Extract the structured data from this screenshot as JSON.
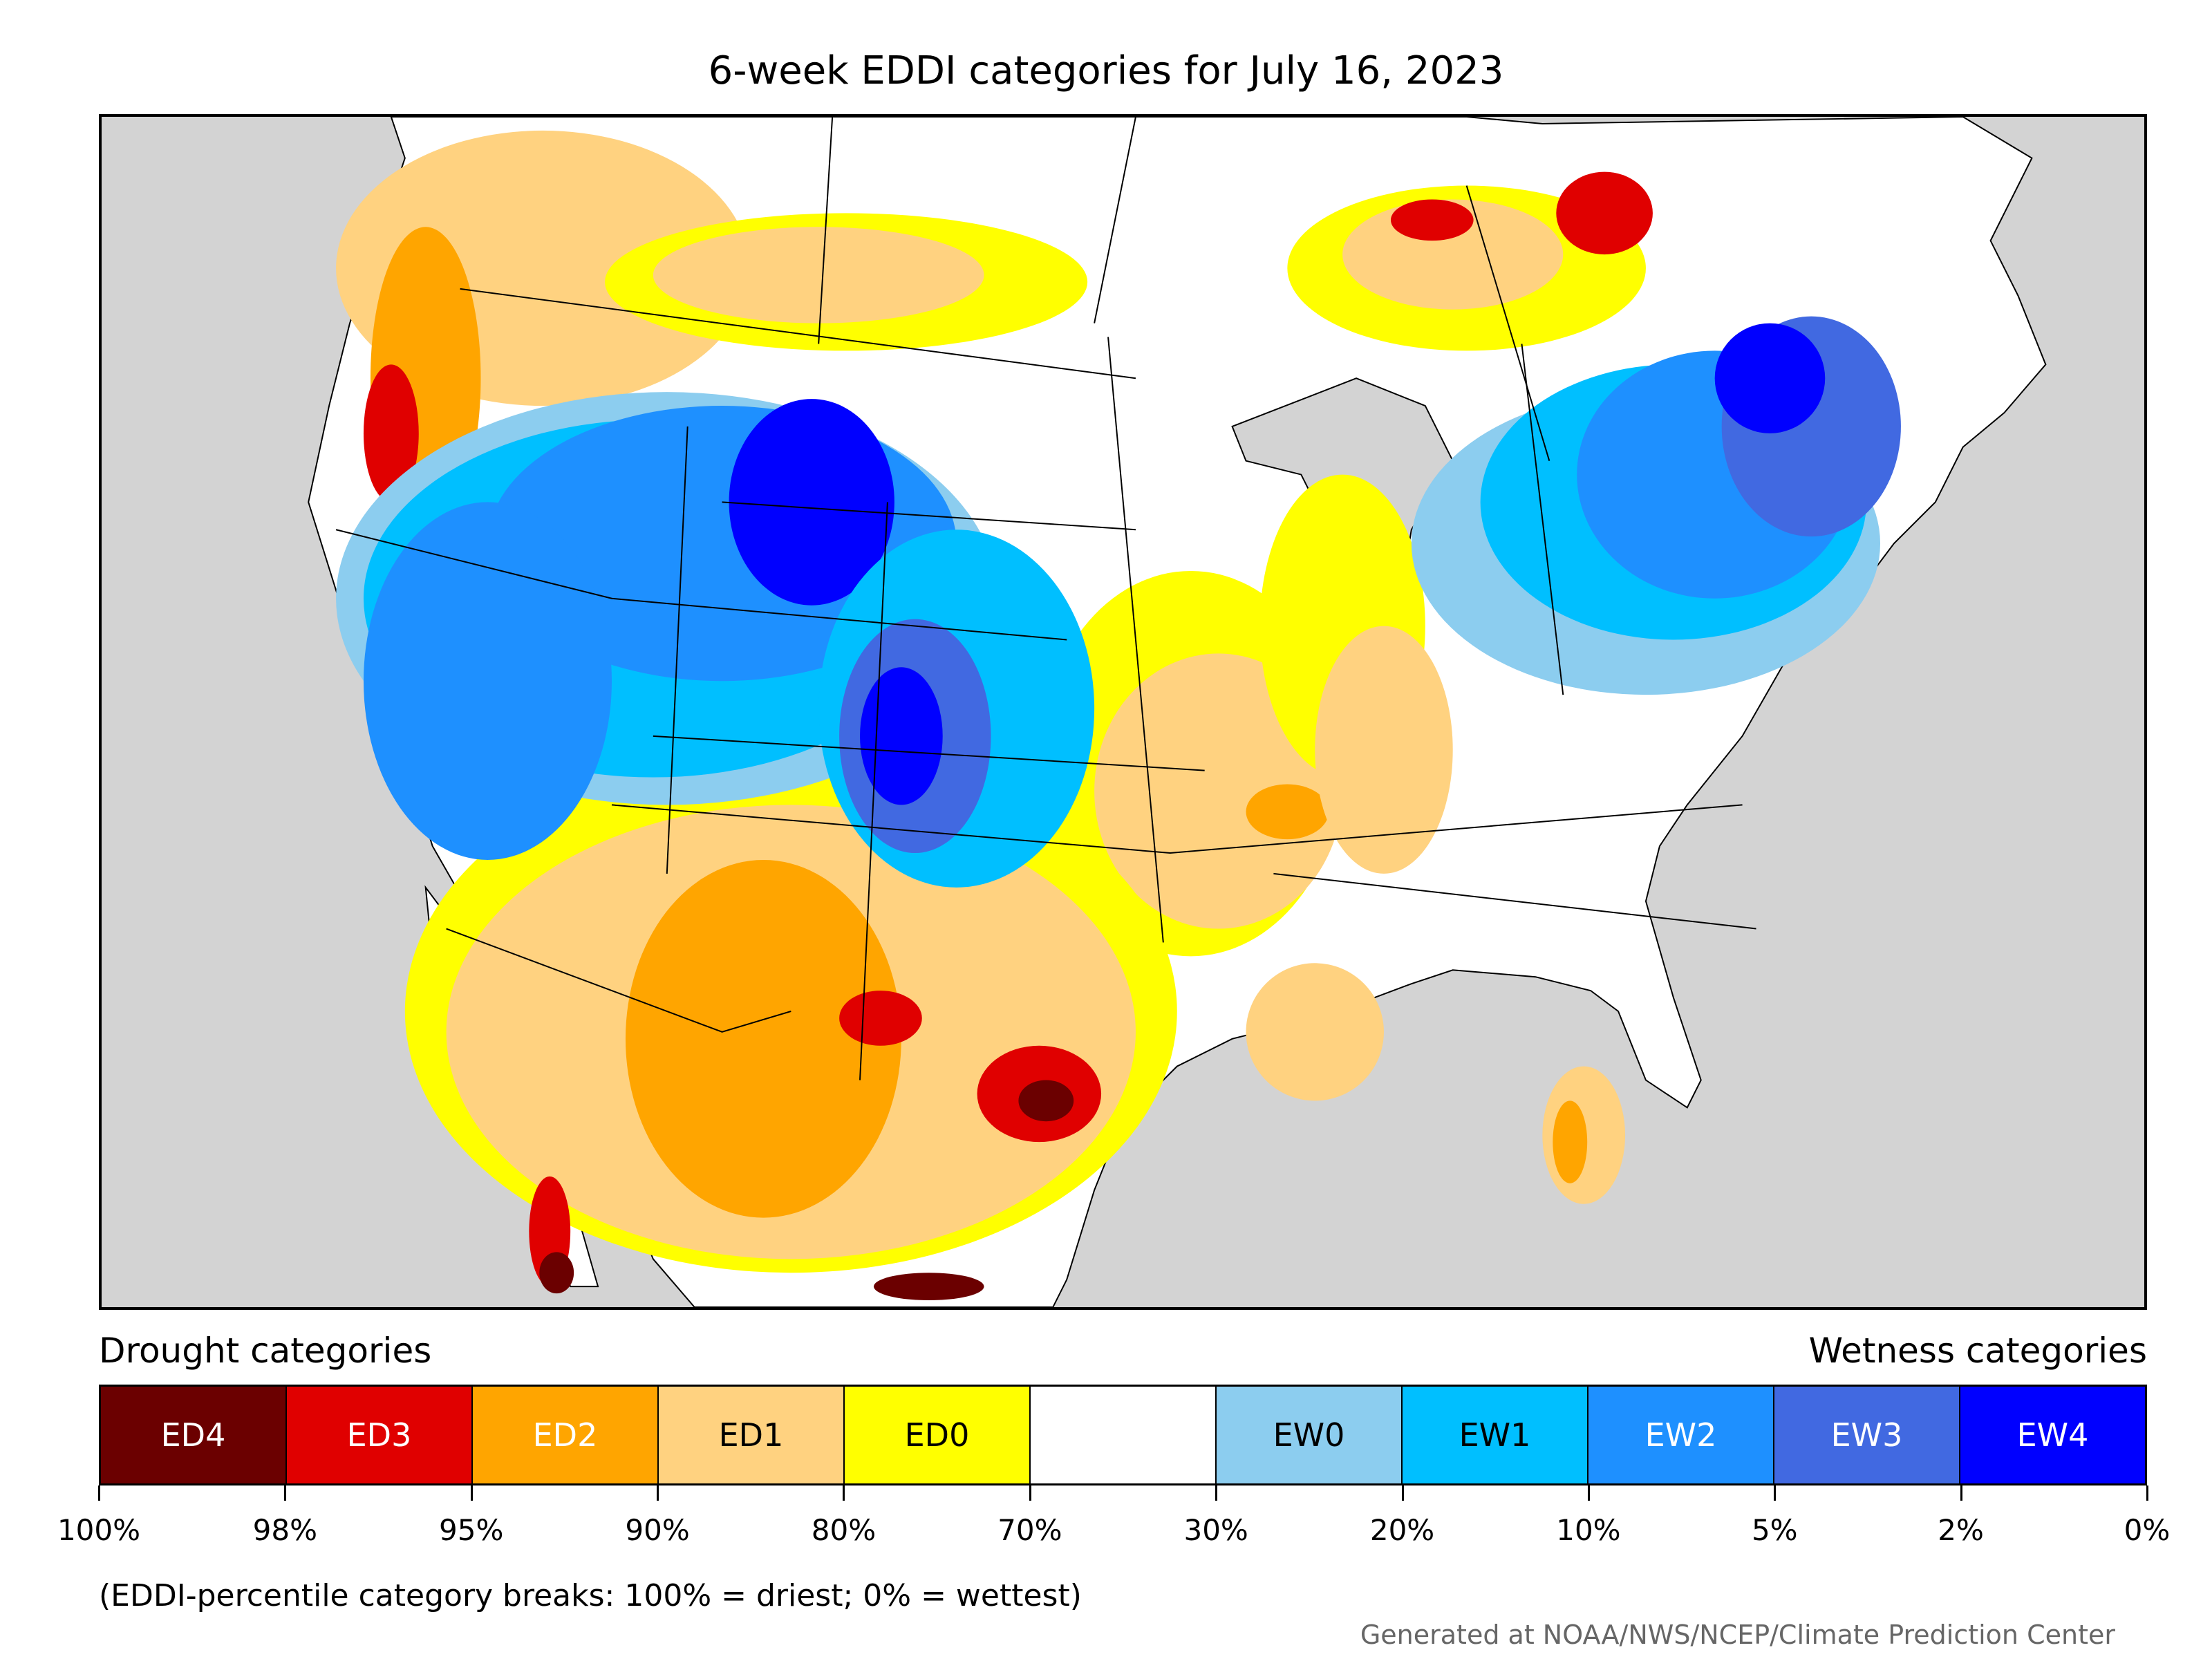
{
  "title": "6-week EDDI categories for July 16, 2023",
  "legend": {
    "drought_heading": "Drought categories",
    "wetness_heading": "Wetness categories",
    "categories": [
      {
        "label": "ED4",
        "color": "#6b0000",
        "text_color": "#ffffff"
      },
      {
        "label": "ED3",
        "color": "#e00000",
        "text_color": "#ffffff"
      },
      {
        "label": "ED2",
        "color": "#ffa500",
        "text_color": "#ffffff"
      },
      {
        "label": "ED1",
        "color": "#ffd280",
        "text_color": "#000000"
      },
      {
        "label": "ED0",
        "color": "#ffff00",
        "text_color": "#000000"
      },
      {
        "label": "",
        "color": "#ffffff",
        "text_color": "#000000"
      },
      {
        "label": "EW0",
        "color": "#8ccdef",
        "text_color": "#000000"
      },
      {
        "label": "EW1",
        "color": "#00bfff",
        "text_color": "#000000"
      },
      {
        "label": "EW2",
        "color": "#1e90ff",
        "text_color": "#ffffff"
      },
      {
        "label": "EW3",
        "color": "#4169e1",
        "text_color": "#ffffff"
      },
      {
        "label": "EW4",
        "color": "#0000ff",
        "text_color": "#ffffff"
      }
    ],
    "tick_labels": [
      "100%",
      "98%",
      "95%",
      "90%",
      "80%",
      "70%",
      "30%",
      "20%",
      "10%",
      "5%",
      "2%",
      "0%"
    ]
  },
  "note": "(EDDI-percentile category breaks: 100% = driest; 0% = wettest)",
  "credit": "Generated at NOAA/NWS/NCEP/Climate Prediction Center",
  "map": {
    "background_color": "#d3d3d3",
    "land_color": "#ffffff",
    "boundary_color": "#000000"
  }
}
